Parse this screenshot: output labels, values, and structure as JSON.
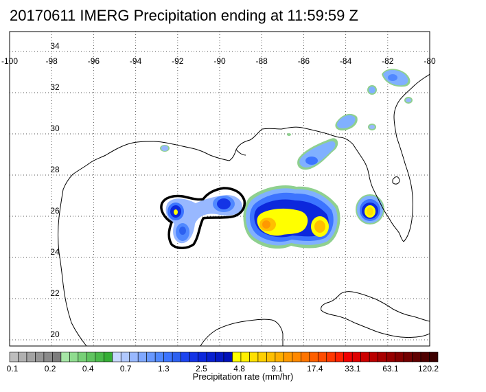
{
  "title": "20170611 IMERG Precipitation ending at 11:59:59 Z",
  "map": {
    "lon_range": [
      -100,
      -80
    ],
    "lat_range": [
      19.5,
      35
    ],
    "lon_ticks": [
      "-100",
      "-98",
      "-96",
      "-94",
      "-92",
      "-90",
      "-88",
      "-86",
      "-84",
      "-82",
      "-80"
    ],
    "lat_ticks": [
      "20",
      "22",
      "24",
      "26",
      "28",
      "30",
      "32",
      "34"
    ],
    "grid": "dotted"
  },
  "colorbar": {
    "label": "Precipitation rate (mm/hr)",
    "tick_labels": [
      "0.1",
      "0.2",
      "0.4",
      "0.7",
      "1.3",
      "2.5",
      "4.8",
      "9.1",
      "17.4",
      "33.1",
      "63.1",
      "120.2"
    ],
    "colors": [
      "#bdbdbd",
      "#b0b0b0",
      "#a3a3a3",
      "#969696",
      "#8a8a8a",
      "#7d7d7d",
      "#a6e6a6",
      "#8fdc8f",
      "#77d077",
      "#60c460",
      "#4aba4a",
      "#35ae35",
      "#c8d8ff",
      "#b0c8ff",
      "#98b8ff",
      "#80a8ff",
      "#6898ff",
      "#5088ff",
      "#3c74ff",
      "#2c60f0",
      "#1c44f0",
      "#1434e6",
      "#0c28dc",
      "#0820d0",
      "#0418c4",
      "#0010b8",
      "#ffff00",
      "#ffef00",
      "#ffdf00",
      "#ffcf00",
      "#ffbf00",
      "#ffaf00",
      "#ff9800",
      "#ff8800",
      "#ff7400",
      "#ff6000",
      "#ff4c00",
      "#ff3800",
      "#ff2000",
      "#f00000",
      "#de0000",
      "#cc0000",
      "#ba0000",
      "#a80000",
      "#960000",
      "#840000",
      "#720000",
      "#600000",
      "#4e0000",
      "#3c0000"
    ]
  }
}
